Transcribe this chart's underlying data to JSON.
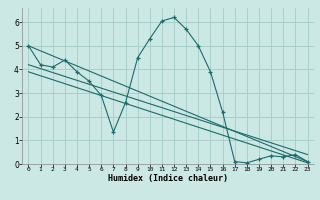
{
  "xlabel": "Humidex (Indice chaleur)",
  "background_color": "#cce8e4",
  "grid_color": "#aad0cc",
  "line_color": "#1a6b6b",
  "xlim": [
    -0.5,
    23.5
  ],
  "ylim": [
    0,
    6.6
  ],
  "xticks": [
    0,
    1,
    2,
    3,
    4,
    5,
    6,
    7,
    8,
    9,
    10,
    11,
    12,
    13,
    14,
    15,
    16,
    17,
    18,
    19,
    20,
    21,
    22,
    23
  ],
  "yticks": [
    0,
    1,
    2,
    3,
    4,
    5,
    6
  ],
  "main_line": {
    "x": [
      0,
      1,
      2,
      3,
      4,
      5,
      6,
      7,
      8,
      9,
      10,
      11,
      12,
      13,
      14,
      15,
      16,
      17,
      18,
      19,
      20,
      21,
      22,
      23
    ],
    "y": [
      5.0,
      4.2,
      4.1,
      4.4,
      3.9,
      3.5,
      2.9,
      1.35,
      2.6,
      4.5,
      5.3,
      6.05,
      6.2,
      5.7,
      5.0,
      3.9,
      2.2,
      0.1,
      0.05,
      0.2,
      0.35,
      0.3,
      0.4,
      0.1
    ]
  },
  "straight_lines": [
    {
      "x": [
        0,
        23
      ],
      "y": [
        5.0,
        0.1
      ]
    },
    {
      "x": [
        0,
        23
      ],
      "y": [
        4.2,
        0.4
      ]
    },
    {
      "x": [
        0,
        23
      ],
      "y": [
        3.9,
        0.05
      ]
    }
  ]
}
